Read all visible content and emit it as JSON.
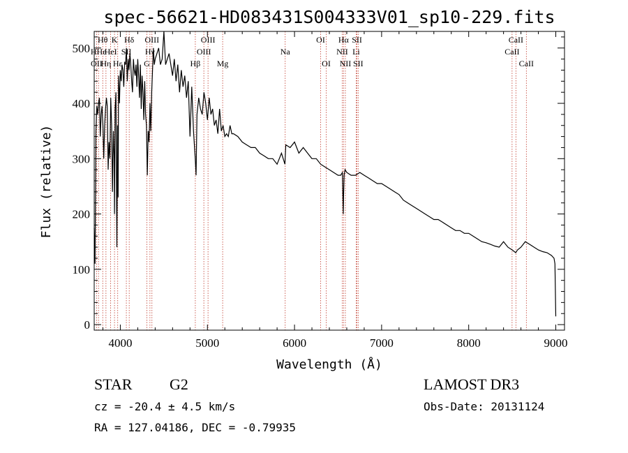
{
  "chart_data": {
    "type": "line",
    "title": "spec-56621-HD083431S004333V01_sp10-229.fits",
    "xlabel": "Wavelength (Å)",
    "ylabel": "Flux (relative)",
    "xlim": [
      3700,
      9100
    ],
    "ylim": [
      -10,
      530
    ],
    "xticks": [
      4000,
      5000,
      6000,
      7000,
      8000,
      9000
    ],
    "yticks": [
      0,
      100,
      200,
      300,
      400,
      500
    ],
    "series": [
      {
        "name": "flux",
        "color": "#000000",
        "x": [
          3700,
          3710,
          3720,
          3730,
          3740,
          3750,
          3760,
          3770,
          3780,
          3790,
          3800,
          3810,
          3820,
          3830,
          3840,
          3850,
          3860,
          3870,
          3880,
          3890,
          3900,
          3910,
          3920,
          3930,
          3933,
          3940,
          3950,
          3960,
          3968,
          3975,
          3980,
          3990,
          4000,
          4010,
          4020,
          4030,
          4040,
          4050,
          4060,
          4070,
          4080,
          4090,
          4100,
          4110,
          4120,
          4130,
          4140,
          4150,
          4160,
          4170,
          4180,
          4190,
          4200,
          4210,
          4220,
          4230,
          4240,
          4250,
          4260,
          4270,
          4280,
          4290,
          4300,
          4310,
          4320,
          4330,
          4340,
          4350,
          4360,
          4370,
          4380,
          4390,
          4400,
          4420,
          4440,
          4460,
          4480,
          4500,
          4520,
          4540,
          4560,
          4580,
          4600,
          4620,
          4640,
          4660,
          4680,
          4700,
          4720,
          4740,
          4760,
          4780,
          4800,
          4820,
          4840,
          4860,
          4870,
          4880,
          4900,
          4920,
          4940,
          4960,
          4980,
          5000,
          5020,
          5040,
          5060,
          5080,
          5100,
          5120,
          5140,
          5160,
          5180,
          5200,
          5220,
          5240,
          5260,
          5280,
          5300,
          5350,
          5400,
          5450,
          5500,
          5550,
          5600,
          5650,
          5700,
          5750,
          5800,
          5850,
          5890,
          5900,
          5950,
          6000,
          6050,
          6100,
          6150,
          6200,
          6250,
          6300,
          6350,
          6400,
          6450,
          6500,
          6530,
          6550,
          6560,
          6563,
          6570,
          6580,
          6600,
          6650,
          6700,
          6750,
          6800,
          6850,
          6900,
          6950,
          7000,
          7050,
          7100,
          7150,
          7200,
          7250,
          7300,
          7350,
          7400,
          7450,
          7500,
          7550,
          7600,
          7650,
          7700,
          7750,
          7800,
          7850,
          7900,
          7950,
          8000,
          8050,
          8100,
          8150,
          8200,
          8250,
          8300,
          8350,
          8400,
          8450,
          8500,
          8540,
          8560,
          8600,
          8650,
          8700,
          8750,
          8800,
          8850,
          8900,
          8950,
          8980,
          8990,
          9000
        ],
        "y": [
          175,
          110,
          350,
          395,
          380,
          400,
          410,
          340,
          380,
          395,
          360,
          300,
          360,
          390,
          410,
          395,
          280,
          330,
          300,
          410,
          360,
          240,
          350,
          300,
          200,
          390,
          420,
          140,
          360,
          230,
          450,
          400,
          460,
          440,
          470,
          460,
          430,
          475,
          470,
          500,
          440,
          480,
          460,
          490,
          470,
          440,
          420,
          480,
          460,
          450,
          470,
          430,
          480,
          450,
          410,
          470,
          390,
          450,
          420,
          370,
          440,
          380,
          360,
          270,
          350,
          330,
          400,
          350,
          420,
          460,
          500,
          470,
          480,
          490,
          500,
          470,
          480,
          530,
          470,
          480,
          490,
          470,
          450,
          480,
          440,
          470,
          420,
          460,
          430,
          450,
          410,
          440,
          340,
          430,
          350,
          300,
          270,
          380,
          410,
          390,
          380,
          420,
          400,
          370,
          410,
          380,
          390,
          360,
          370,
          345,
          390,
          350,
          360,
          340,
          345,
          340,
          360,
          345,
          345,
          340,
          330,
          325,
          320,
          320,
          310,
          305,
          300,
          300,
          290,
          310,
          290,
          325,
          320,
          330,
          310,
          320,
          310,
          300,
          300,
          290,
          285,
          280,
          275,
          270,
          270,
          275,
          200,
          230,
          270,
          280,
          275,
          270,
          270,
          275,
          270,
          265,
          260,
          255,
          255,
          250,
          245,
          240,
          235,
          225,
          220,
          215,
          210,
          205,
          200,
          195,
          190,
          190,
          185,
          180,
          175,
          170,
          170,
          165,
          165,
          160,
          155,
          150,
          148,
          145,
          142,
          140,
          150,
          140,
          135,
          130,
          135,
          140,
          150,
          145,
          140,
          135,
          132,
          130,
          125,
          120,
          110,
          15
        ]
      }
    ],
    "annotations": [
      {
        "label": "Hθ",
        "x": 3798,
        "row": 1
      },
      {
        "label": "OII",
        "x": 3727,
        "row": 3
      },
      {
        "label": "Hη",
        "x": 3835,
        "row": 3
      },
      {
        "label": "HHe",
        "x": 3750,
        "row": 2
      },
      {
        "label": "HeI",
        "x": 3889,
        "row": 2
      },
      {
        "label": "K",
        "x": 3933,
        "row": 1
      },
      {
        "label": "SII",
        "x": 4069,
        "row": 2
      },
      {
        "label": "Hε",
        "x": 3970,
        "row": 3
      },
      {
        "label": "Hδ",
        "x": 4102,
        "row": 1
      },
      {
        "label": "OIII",
        "x": 4363,
        "row": 1
      },
      {
        "label": "Hγ",
        "x": 4340,
        "row": 2
      },
      {
        "label": "G",
        "x": 4305,
        "row": 3
      },
      {
        "label": "Hβ",
        "x": 4861,
        "row": 3
      },
      {
        "label": "OIII",
        "x": 4959,
        "row": 2
      },
      {
        "label": "OIII",
        "x": 5007,
        "row": 1
      },
      {
        "label": "Mg",
        "x": 5175,
        "row": 3
      },
      {
        "label": "Na",
        "x": 5893,
        "row": 2
      },
      {
        "label": "OI",
        "x": 6300,
        "row": 1
      },
      {
        "label": "OI",
        "x": 6364,
        "row": 3
      },
      {
        "label": "NII",
        "x": 6548,
        "row": 2
      },
      {
        "label": "Hα",
        "x": 6563,
        "row": 1
      },
      {
        "label": "NII",
        "x": 6584,
        "row": 3
      },
      {
        "label": "SII",
        "x": 6717,
        "row": 1
      },
      {
        "label": "Li",
        "x": 6708,
        "row": 2
      },
      {
        "label": "SII",
        "x": 6731,
        "row": 3
      },
      {
        "label": "CaII",
        "x": 8498,
        "row": 2
      },
      {
        "label": "CaII",
        "x": 8542,
        "row": 1
      },
      {
        "label": "CaII",
        "x": 8662,
        "row": 3
      }
    ],
    "line_color": "#c0392b"
  },
  "info": {
    "object_class": "STAR",
    "subclass": "G2",
    "survey": "LAMOST DR3",
    "cz": "cz = -20.4 ± 4.5 km/s",
    "obs_date": "Obs-Date: 20131124",
    "coords": "RA = 127.04186, DEC =  -0.79935"
  }
}
